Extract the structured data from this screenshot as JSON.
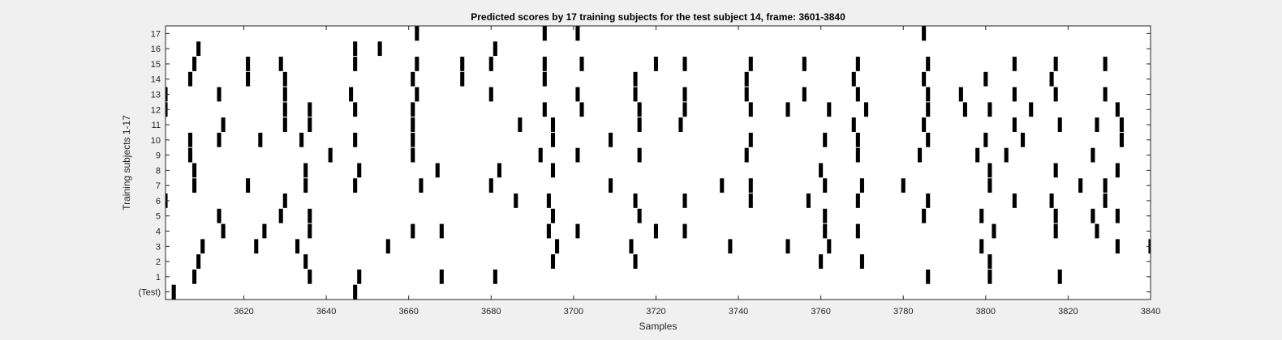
{
  "chart_data": {
    "type": "heatmap",
    "title": "Predicted scores by 17 training subjects for the test subject 14, frame: 3601-3840",
    "xlabel": "Samples",
    "ylabel": "Training subjects 1-17",
    "xlim": [
      3601,
      3840
    ],
    "xticks": [
      3620,
      3640,
      3660,
      3680,
      3700,
      3720,
      3740,
      3760,
      3780,
      3800,
      3820,
      3840
    ],
    "yticklabels": [
      "(Test)",
      "1",
      "2",
      "3",
      "4",
      "5",
      "6",
      "7",
      "8",
      "9",
      "10",
      "11",
      "12",
      "13",
      "14",
      "15",
      "16",
      "17"
    ],
    "grid": false,
    "colors": {
      "mark": "#000000",
      "background": "#ffffff"
    },
    "rows": [
      {
        "label": "(Test)",
        "x": [
          3603,
          3647
        ]
      },
      {
        "label": "1",
        "x": [
          3608,
          3636,
          3648,
          3668,
          3681,
          3786,
          3801,
          3818
        ]
      },
      {
        "label": "2",
        "x": [
          3609,
          3635,
          3695,
          3715,
          3760,
          3770,
          3801
        ]
      },
      {
        "label": "3",
        "x": [
          3610,
          3623,
          3633,
          3655,
          3696,
          3714,
          3738,
          3752,
          3762,
          3799,
          3832,
          3840
        ]
      },
      {
        "label": "4",
        "x": [
          3615,
          3625,
          3636,
          3661,
          3668,
          3694,
          3701,
          3720,
          3727,
          3761,
          3769,
          3802,
          3817,
          3827
        ]
      },
      {
        "label": "5",
        "x": [
          3614,
          3629,
          3636,
          3695,
          3716,
          3761,
          3785,
          3799,
          3817,
          3826,
          3832
        ]
      },
      {
        "label": "6",
        "x": [
          3601,
          3630,
          3686,
          3694,
          3715,
          3727,
          3743,
          3757,
          3769,
          3786,
          3807,
          3816,
          3829
        ]
      },
      {
        "label": "7",
        "x": [
          3608,
          3621,
          3635,
          3647,
          3663,
          3680,
          3709,
          3736,
          3743,
          3761,
          3770,
          3780,
          3801,
          3823,
          3829
        ]
      },
      {
        "label": "8",
        "x": [
          3608,
          3635,
          3648,
          3667,
          3682,
          3695,
          3760,
          3801,
          3817,
          3832
        ]
      },
      {
        "label": "9",
        "x": [
          3607,
          3641,
          3661,
          3692,
          3701,
          3716,
          3742,
          3769,
          3784,
          3798,
          3805,
          3826
        ]
      },
      {
        "label": "10",
        "x": [
          3607,
          3614,
          3624,
          3634,
          3647,
          3661,
          3695,
          3709,
          3743,
          3761,
          3769,
          3786,
          3800,
          3809,
          3833
        ]
      },
      {
        "label": "11",
        "x": [
          3615,
          3630,
          3636,
          3661,
          3687,
          3695,
          3716,
          3726,
          3768,
          3785,
          3807,
          3818,
          3827,
          3833
        ]
      },
      {
        "label": "12",
        "x": [
          3601,
          3630,
          3636,
          3647,
          3661,
          3693,
          3702,
          3716,
          3727,
          3743,
          3752,
          3762,
          3771,
          3786,
          3795,
          3801,
          3811,
          3832
        ]
      },
      {
        "label": "13",
        "x": [
          3601,
          3614,
          3630,
          3646,
          3662,
          3680,
          3701,
          3715,
          3727,
          3742,
          3756,
          3769,
          3786,
          3794,
          3807,
          3817,
          3829
        ]
      },
      {
        "label": "14",
        "x": [
          3607,
          3621,
          3630,
          3661,
          3673,
          3693,
          3715,
          3742,
          3768,
          3785,
          3800,
          3816
        ]
      },
      {
        "label": "15",
        "x": [
          3608,
          3621,
          3629,
          3647,
          3662,
          3673,
          3680,
          3693,
          3702,
          3720,
          3727,
          3743,
          3756,
          3769,
          3786,
          3807,
          3817,
          3829
        ]
      },
      {
        "label": "16",
        "x": [
          3609,
          3647,
          3653,
          3681
        ]
      },
      {
        "label": "17",
        "x": [
          3662,
          3693,
          3701,
          3785
        ]
      }
    ]
  }
}
